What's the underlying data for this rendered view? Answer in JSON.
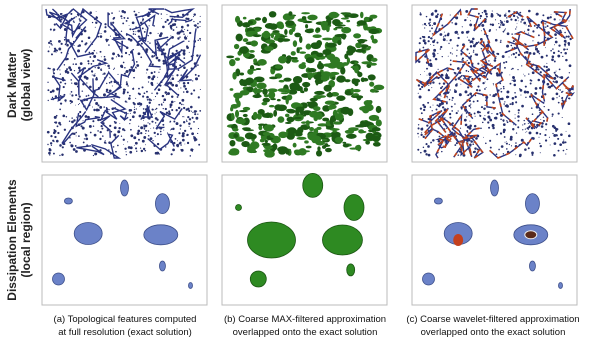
{
  "rows": [
    {
      "line1": "Dark Matter",
      "line2": "(global view)"
    },
    {
      "line1": "Dissipation Elements",
      "line2": "(local region)"
    }
  ],
  "captions": [
    {
      "line1": "(a) Topological features computed",
      "line2": "at full resolution (exact solution)"
    },
    {
      "line1": "(b) Coarse MAX-filtered approximation",
      "line2": "overlapped onto the exact solution"
    },
    {
      "line1": "(c) Coarse wavelet-filtered approximation",
      "line2": "overlapped onto the exact solution"
    }
  ]
}
